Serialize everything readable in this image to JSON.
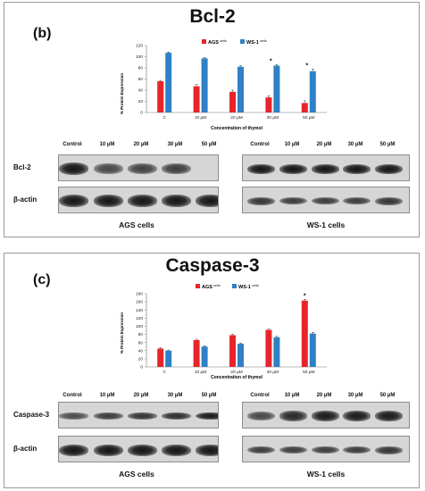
{
  "panels": [
    {
      "letter": "(b)",
      "title": "Bcl-2",
      "chart": {
        "ylabel": "% Protein Expression",
        "xlabel": "Concentration of thymol",
        "legend_ags": "AGS",
        "legend_ws1": "WS-1",
        "legend_suffix": "cells"
      },
      "blot_left": {
        "lanes": [
          "Control",
          "10 µM",
          "20 µM",
          "30 µM",
          "50 µM"
        ],
        "rows": [
          "Bcl-2",
          "β-actin"
        ],
        "caption": "AGS cells"
      },
      "blot_right": {
        "lanes": [
          "Control",
          "10 µM",
          "20 µM",
          "30 µM",
          "50 µM"
        ],
        "caption": "WS-1 cells"
      }
    },
    {
      "letter": "(c)",
      "title": "Caspase-3",
      "chart": {
        "ylabel": "% Protein Expression",
        "xlabel": "Concentration of thymol",
        "legend_ags": "AGS",
        "legend_ws1": "WS-1",
        "legend_suffix": "cells"
      },
      "blot_left": {
        "lanes": [
          "Control",
          "10 µM",
          "20 µM",
          "30 µM",
          "50 µM"
        ],
        "rows": [
          "Caspase-3",
          "β-actin"
        ],
        "caption": "AGS cells"
      },
      "blot_right": {
        "lanes": [
          "Control",
          "10 µM",
          "20 µM",
          "30 µM",
          "50 µM"
        ],
        "caption": "WS-1 cells"
      }
    }
  ],
  "colors": {
    "ags": "#e8242b",
    "ws1": "#2f80c6"
  },
  "band_levels": {
    "b_left_target": [
      1.0,
      0.6,
      0.65,
      0.7,
      0.0
    ],
    "b_left_actin": [
      1.0,
      1.0,
      1.0,
      1.0,
      1.0
    ],
    "b_right_target": [
      1.0,
      1.0,
      1.0,
      1.0,
      1.0
    ],
    "b_right_actin": [
      0.75,
      0.7,
      0.7,
      0.7,
      0.75
    ],
    "c_left_target": [
      0.55,
      0.7,
      0.75,
      0.8,
      0.95
    ],
    "c_left_actin": [
      1.0,
      1.0,
      1.0,
      1.0,
      1.0
    ],
    "c_right_target": [
      0.6,
      0.85,
      0.95,
      0.95,
      0.95
    ],
    "c_right_actin": [
      0.7,
      0.7,
      0.7,
      0.7,
      0.75
    ]
  },
  "chart_data": [
    {
      "type": "bar",
      "categories": [
        "C",
        "10 µM",
        "20 µM",
        "30 µM",
        "50 µM"
      ],
      "series": [
        {
          "name": "AGS cells",
          "values": [
            56,
            47,
            37,
            27,
            17
          ],
          "errors": [
            1.5,
            3,
            3,
            3,
            4
          ]
        },
        {
          "name": "WS-1 cells",
          "values": [
            107,
            97,
            82,
            84,
            74
          ],
          "errors": [
            1.5,
            1.5,
            2,
            2,
            4
          ]
        }
      ],
      "yticks": [
        0,
        20,
        40,
        60,
        80,
        100,
        120
      ],
      "ylim": [
        0,
        120
      ],
      "significant": [
        "30 µM",
        "50 µM"
      ],
      "xlabel": "Concentration of thymol",
      "ylabel": "% Protein Expression"
    },
    {
      "type": "bar",
      "categories": [
        "C",
        "10 µM",
        "20 µM",
        "30 µM",
        "50 µM"
      ],
      "series": [
        {
          "name": "AGS cells",
          "values": [
            45,
            66,
            78,
            91,
            163
          ],
          "errors": [
            2,
            2,
            2,
            2,
            3
          ]
        },
        {
          "name": "WS-1 cells",
          "values": [
            40,
            50,
            57,
            73,
            82
          ],
          "errors": [
            1.5,
            2,
            2,
            2,
            3
          ]
        }
      ],
      "yticks": [
        0,
        20,
        40,
        60,
        80,
        100,
        120,
        140,
        160,
        180
      ],
      "ylim": [
        0,
        180
      ],
      "significant": [
        "50 µM"
      ],
      "xlabel": "Concentration of thymol",
      "ylabel": "% Protein Expression"
    }
  ]
}
